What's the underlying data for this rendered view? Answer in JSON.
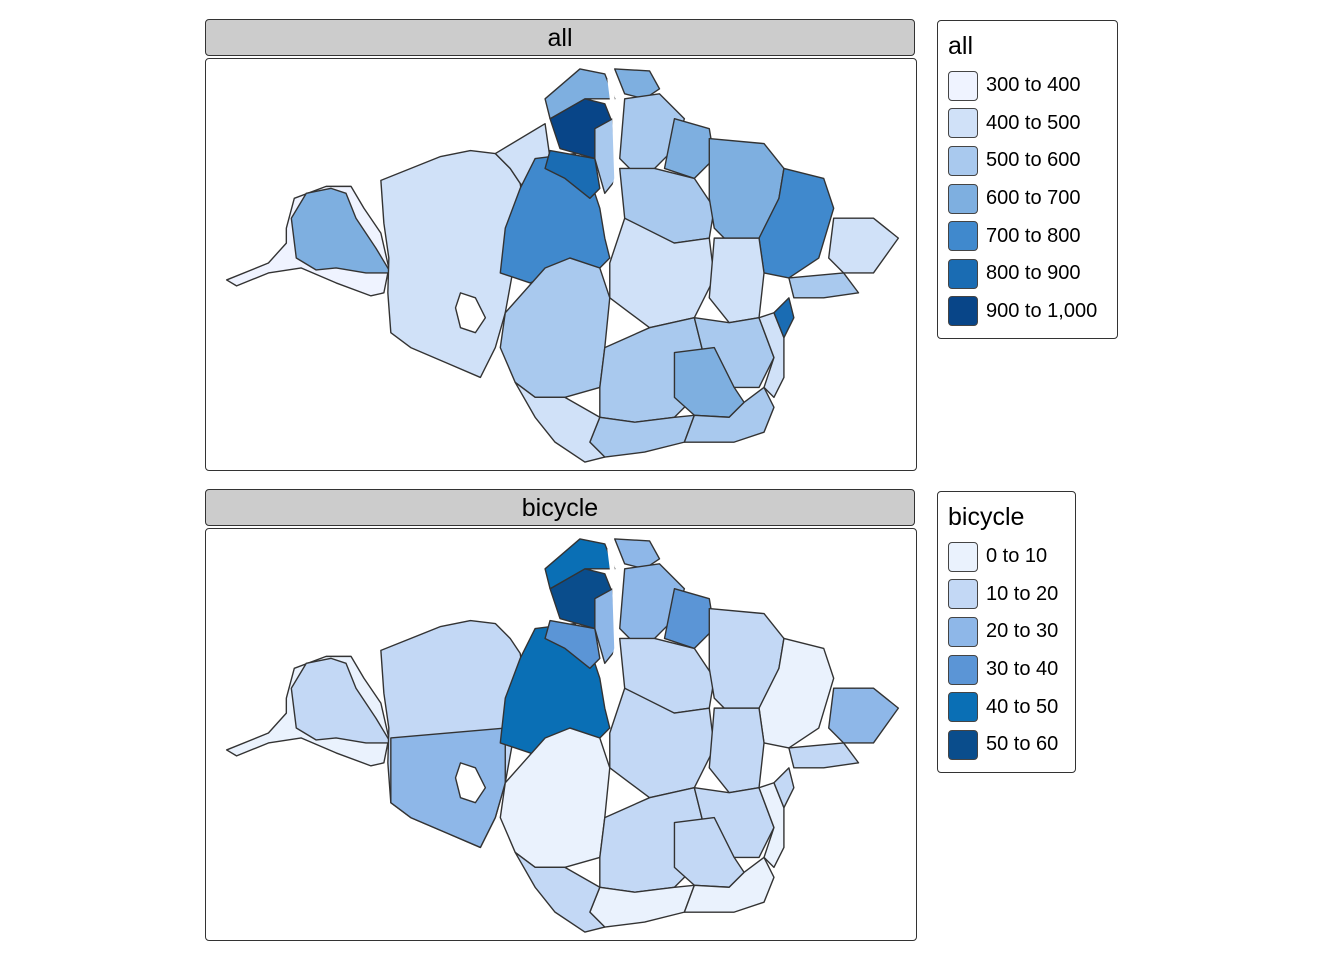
{
  "colors": {
    "stroke": "#333333",
    "strip_bg": "#cccccc",
    "palette": [
      "#eff3ff",
      "#c6dbef",
      "#9ecae1",
      "#6baed6",
      "#4292c6",
      "#2171b5",
      "#084594"
    ]
  },
  "facets": [
    {
      "title": "all",
      "legend_title": "all",
      "legend": [
        {
          "label": "300 to 400",
          "color": "#eff3ff"
        },
        {
          "label": "400 to 500",
          "color": "#d0e1f8"
        },
        {
          "label": "500 to 600",
          "color": "#a9c9ee"
        },
        {
          "label": "600 to 700",
          "color": "#7eafe0"
        },
        {
          "label": "700 to 800",
          "color": "#4089cd"
        },
        {
          "label": "800 to 900",
          "color": "#1a6cb3"
        },
        {
          "label": "900 to 1,000",
          "color": "#084588"
        }
      ]
    },
    {
      "title": "bicycle",
      "legend_title": "bicycle",
      "legend": [
        {
          "label": "0 to 10",
          "color": "#eaf2fd"
        },
        {
          "label": "10 to 20",
          "color": "#c3d8f5"
        },
        {
          "label": "20 to 30",
          "color": "#8eb7e8"
        },
        {
          "label": "30 to 40",
          "color": "#5b95d6"
        },
        {
          "label": "40 to 50",
          "color": "#0a6fb5"
        },
        {
          "label": "50 to 60",
          "color": "#0a4d8c"
        }
      ]
    }
  ]
}
